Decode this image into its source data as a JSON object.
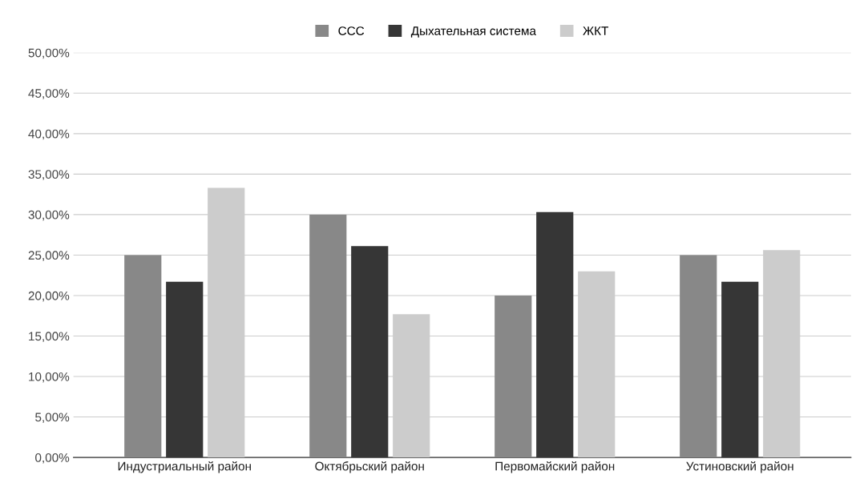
{
  "chart_data": {
    "type": "bar",
    "categories": [
      "Индустриальный район",
      "Октябрьский район",
      "Первомайский район",
      "Устиновский район"
    ],
    "series": [
      {
        "name": "ССС",
        "color": "#888888",
        "values": [
          25.0,
          30.0,
          20.0,
          25.0
        ]
      },
      {
        "name": "Дыхательная система",
        "color": "#363636",
        "values": [
          21.7,
          26.1,
          30.3,
          21.7
        ]
      },
      {
        "name": "ЖКТ",
        "color": "#cccccc",
        "values": [
          33.3,
          17.7,
          23.0,
          25.6
        ]
      }
    ],
    "ylim": [
      0,
      50
    ],
    "yticks": [
      {
        "value": 0,
        "label": "0,00%"
      },
      {
        "value": 5,
        "label": "5,00%"
      },
      {
        "value": 10,
        "label": "10,00%"
      },
      {
        "value": 15,
        "label": "15,00%"
      },
      {
        "value": 20,
        "label": "20,00%"
      },
      {
        "value": 25,
        "label": "25,00%"
      },
      {
        "value": 30,
        "label": "30,00%"
      },
      {
        "value": 35,
        "label": "35,00%"
      },
      {
        "value": 40,
        "label": "40,00%"
      },
      {
        "value": 45,
        "label": "45,00%"
      },
      {
        "value": 50,
        "label": "50,00%"
      }
    ],
    "grid": "y",
    "legend": "top"
  }
}
